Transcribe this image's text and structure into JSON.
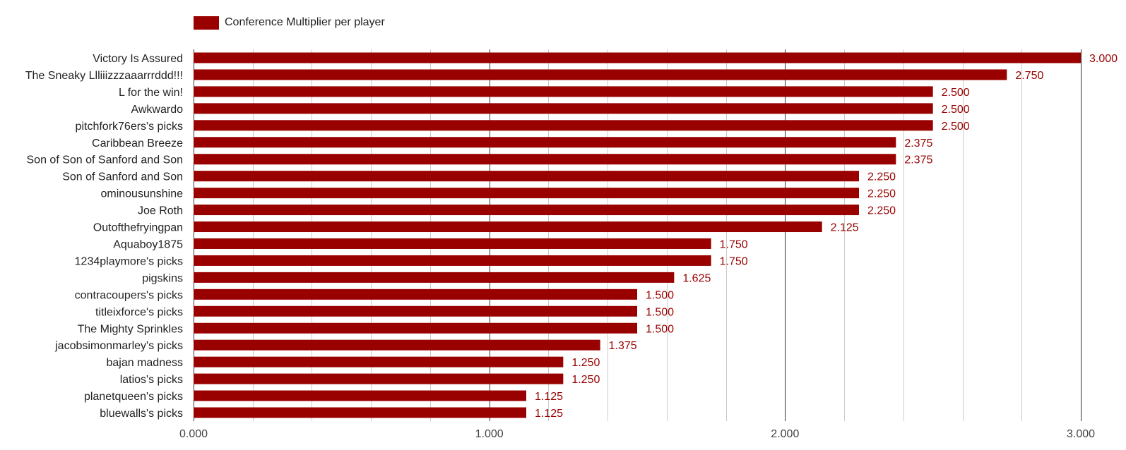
{
  "chart_data": {
    "type": "bar",
    "orientation": "horizontal",
    "legend": {
      "position": "top-left",
      "entries": [
        "Conference Multiplier per player"
      ]
    },
    "series": [
      {
        "name": "Conference Multiplier per player",
        "color": "#990000"
      }
    ],
    "categories": [
      "Victory Is Assured",
      "The Sneaky Llliiizzzaaarrrddd!!!",
      "L for the win!",
      "Awkwardo",
      "pitchfork76ers's picks",
      "Caribbean Breeze",
      "Son of Son of Sanford and Son",
      "Son of Sanford and Son",
      "ominousunshine",
      "Joe Roth",
      "Outofthefryingpan",
      "Aquaboy1875",
      "1234playmore's picks",
      "pigskins",
      "contracoupers's picks",
      "titleixforce's picks",
      "The Mighty Sprinkles",
      "jacobsimonmarley's picks",
      "bajan madness",
      "latios's picks",
      "planetqueen's picks",
      "bluewalls's picks"
    ],
    "values": [
      3.0,
      2.75,
      2.5,
      2.5,
      2.5,
      2.375,
      2.375,
      2.25,
      2.25,
      2.25,
      2.125,
      1.75,
      1.75,
      1.625,
      1.5,
      1.5,
      1.5,
      1.375,
      1.25,
      1.25,
      1.125,
      1.125
    ],
    "value_labels": [
      "3.000",
      "2.750",
      "2.500",
      "2.500",
      "2.500",
      "2.375",
      "2.375",
      "2.250",
      "2.250",
      "2.250",
      "2.125",
      "1.750",
      "1.750",
      "1.625",
      "1.500",
      "1.500",
      "1.500",
      "1.375",
      "1.250",
      "1.250",
      "1.125",
      "1.125"
    ],
    "xlim": [
      0,
      3
    ],
    "x_ticks": [
      0,
      1,
      2,
      3
    ],
    "x_tick_labels": [
      "0.000",
      "1.000",
      "2.000",
      "3.000"
    ],
    "minor_gridlines": true,
    "colors": {
      "bar": "#990000",
      "value_label": "#990000",
      "major_grid": "#333333",
      "minor_grid": "#cccccc"
    }
  }
}
